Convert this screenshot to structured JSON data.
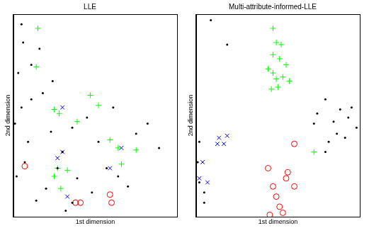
{
  "chart_data": [
    {
      "type": "scatter",
      "title": "LLE",
      "x_label": "1st dimension",
      "y_label": "2nd dimension",
      "xlim": [
        0,
        1
      ],
      "ylim": [
        0,
        1
      ],
      "tick_labels": false,
      "grid": false,
      "series": [
        {
          "color": "#000000",
          "marker": "dot",
          "x": [
            0.05,
            0.06,
            0.03,
            0.11,
            0.18,
            0.09,
            0.02,
            0.14,
            0.2,
            0.3,
            0.36,
            0.45,
            0.52,
            0.57,
            0.64,
            0.7,
            0.32,
            0.23,
            0.39,
            0.48,
            0.61,
            0.75,
            0.89,
            0.82,
            0.11,
            0.16,
            0.24,
            0.05,
            0.01,
            0.07,
            0.36,
            0.27
          ],
          "y": [
            0.95,
            0.86,
            0.71,
            0.58,
            0.61,
            0.37,
            0.2,
            0.08,
            0.14,
            0.32,
            0.44,
            0.49,
            0.37,
            0.24,
            0.2,
            0.15,
            0.03,
            0.42,
            0.19,
            0.12,
            0.54,
            0.41,
            0.34,
            0.46,
            0.75,
            0.83,
            0.67,
            0.54,
            0.46,
            0.27,
            0.07,
            0.24
          ]
        },
        {
          "color": "#00ff00",
          "marker": "plus",
          "x": [
            0.15,
            0.14,
            0.47,
            0.52,
            0.25,
            0.28,
            0.39,
            0.59,
            0.64,
            0.75,
            0.27,
            0.25,
            0.29,
            0.33,
            0.66
          ],
          "y": [
            0.93,
            0.74,
            0.6,
            0.55,
            0.53,
            0.51,
            0.47,
            0.38,
            0.34,
            0.33,
            0.24,
            0.2,
            0.14,
            0.23,
            0.26
          ]
        },
        {
          "color": "#0000ff",
          "marker": "x",
          "x": [
            0.3,
            0.3,
            0.59,
            0.66,
            0.27,
            0.33
          ],
          "y": [
            0.54,
            0.32,
            0.24,
            0.34,
            0.29,
            0.1
          ]
        },
        {
          "color": "#ff0000",
          "marker": "circle",
          "x": [
            0.07,
            0.38,
            0.41,
            0.59,
            0.6
          ],
          "y": [
            0.25,
            0.07,
            0.07,
            0.11,
            0.07
          ]
        }
      ]
    },
    {
      "type": "scatter",
      "title": "Multi-attribute-informed-LLE",
      "x_label": "1st dimension",
      "y_label": "2nd dimension",
      "xlim": [
        0,
        1
      ],
      "ylim": [
        0,
        1
      ],
      "tick_labels": false,
      "grid": false,
      "series": [
        {
          "color": "#000000",
          "marker": "dot",
          "x": [
            0.02,
            0.05,
            0.05,
            0.84,
            0.88,
            0.93,
            0.98,
            0.86,
            0.91,
            0.81,
            0.95,
            0.79,
            0.74,
            0.72,
            0.09,
            0.19,
            0.02,
            0.01,
            0.79
          ],
          "y": [
            0.17,
            0.12,
            0.07,
            0.47,
            0.53,
            0.49,
            0.44,
            0.41,
            0.39,
            0.37,
            0.54,
            0.58,
            0.51,
            0.46,
            0.97,
            0.85,
            0.37,
            0.27,
            0.32
          ]
        },
        {
          "color": "#00ff00",
          "marker": "plus",
          "x": [
            0.47,
            0.49,
            0.51,
            0.44,
            0.47,
            0.53,
            0.5,
            0.47,
            0.52,
            0.55,
            0.57,
            0.72,
            0.46,
            0.49
          ],
          "y": [
            0.93,
            0.86,
            0.78,
            0.73,
            0.71,
            0.69,
            0.64,
            0.8,
            0.85,
            0.75,
            0.67,
            0.32,
            0.63,
            0.68
          ]
        },
        {
          "color": "#0000ff",
          "marker": "x",
          "x": [
            0.14,
            0.13,
            0.17,
            0.19,
            0.04,
            0.02,
            0.07
          ],
          "y": [
            0.39,
            0.36,
            0.36,
            0.4,
            0.27,
            0.19,
            0.17
          ]
        },
        {
          "color": "#ff0000",
          "marker": "circle",
          "x": [
            0.6,
            0.44,
            0.56,
            0.55,
            0.6,
            0.47,
            0.49,
            0.51,
            0.45,
            0.53
          ],
          "y": [
            0.36,
            0.24,
            0.22,
            0.19,
            0.15,
            0.15,
            0.1,
            0.05,
            0.01,
            0.02
          ]
        }
      ]
    }
  ]
}
